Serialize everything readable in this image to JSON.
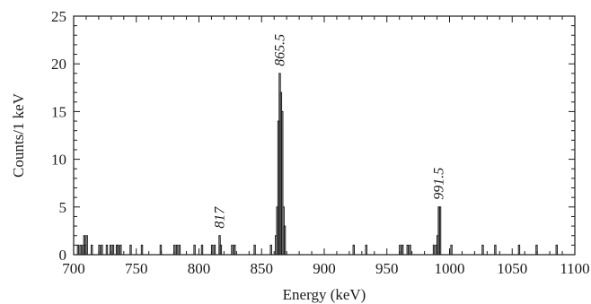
{
  "chart_data": {
    "type": "histogram",
    "title": "",
    "xlabel": "Energy (keV)",
    "ylabel": "Counts/1 keV",
    "xlim": [
      700,
      1100
    ],
    "ylim": [
      0,
      25
    ],
    "bin_width": 1,
    "xticks": [
      700,
      750,
      800,
      850,
      900,
      950,
      1000,
      1050,
      1100
    ],
    "yticks": [
      0,
      5,
      10,
      15,
      20,
      25
    ],
    "grid": false,
    "legend": "none",
    "line_color": "#1a1a1a",
    "bins": [
      {
        "x": 703,
        "y": 1
      },
      {
        "x": 705,
        "y": 1
      },
      {
        "x": 707,
        "y": 1
      },
      {
        "x": 708,
        "y": 2
      },
      {
        "x": 709,
        "y": 1
      },
      {
        "x": 710,
        "y": 2
      },
      {
        "x": 714,
        "y": 1
      },
      {
        "x": 720,
        "y": 1
      },
      {
        "x": 722,
        "y": 1
      },
      {
        "x": 726,
        "y": 1
      },
      {
        "x": 729,
        "y": 1
      },
      {
        "x": 731,
        "y": 1
      },
      {
        "x": 734,
        "y": 1
      },
      {
        "x": 735,
        "y": 1
      },
      {
        "x": 737,
        "y": 1
      },
      {
        "x": 745,
        "y": 1
      },
      {
        "x": 754,
        "y": 1
      },
      {
        "x": 769,
        "y": 1
      },
      {
        "x": 780,
        "y": 1
      },
      {
        "x": 782,
        "y": 1
      },
      {
        "x": 784,
        "y": 1
      },
      {
        "x": 796,
        "y": 1
      },
      {
        "x": 802,
        "y": 1
      },
      {
        "x": 810,
        "y": 1
      },
      {
        "x": 812,
        "y": 1
      },
      {
        "x": 816,
        "y": 2
      },
      {
        "x": 817,
        "y": 1
      },
      {
        "x": 826,
        "y": 1
      },
      {
        "x": 828,
        "y": 1
      },
      {
        "x": 844,
        "y": 1
      },
      {
        "x": 857,
        "y": 1
      },
      {
        "x": 861,
        "y": 2
      },
      {
        "x": 862,
        "y": 5
      },
      {
        "x": 863,
        "y": 14
      },
      {
        "x": 864,
        "y": 19
      },
      {
        "x": 865,
        "y": 17
      },
      {
        "x": 866,
        "y": 15
      },
      {
        "x": 867,
        "y": 5
      },
      {
        "x": 868,
        "y": 3
      },
      {
        "x": 923,
        "y": 1
      },
      {
        "x": 933,
        "y": 1
      },
      {
        "x": 960,
        "y": 1
      },
      {
        "x": 962,
        "y": 1
      },
      {
        "x": 966,
        "y": 1
      },
      {
        "x": 968,
        "y": 1
      },
      {
        "x": 987,
        "y": 1
      },
      {
        "x": 989,
        "y": 1
      },
      {
        "x": 990,
        "y": 2
      },
      {
        "x": 991,
        "y": 5
      },
      {
        "x": 992,
        "y": 5
      },
      {
        "x": 1001,
        "y": 1
      },
      {
        "x": 1026,
        "y": 1
      },
      {
        "x": 1036,
        "y": 1
      },
      {
        "x": 1055,
        "y": 1
      },
      {
        "x": 1069,
        "y": 1
      },
      {
        "x": 1085,
        "y": 1
      }
    ],
    "annotations": [
      {
        "text": "817",
        "x": 816.5,
        "y": 2
      },
      {
        "text": "865.5",
        "x": 864.5,
        "y": 19
      },
      {
        "text": "991.5",
        "x": 991.5,
        "y": 5
      }
    ]
  }
}
